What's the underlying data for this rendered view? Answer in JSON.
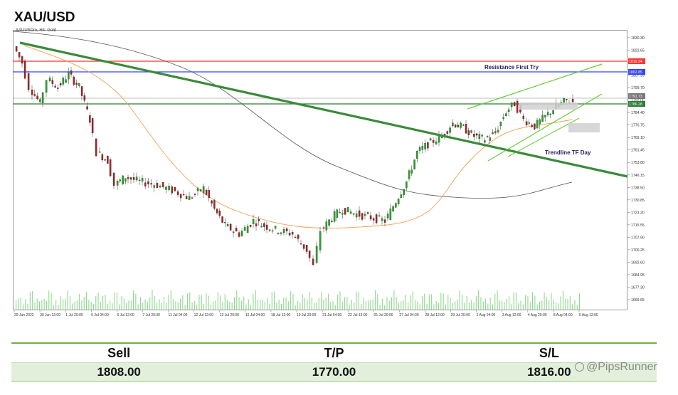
{
  "title": "XAU/USD",
  "chart": {
    "symbol_label": "XAUUSDm, H4: Gold",
    "price_ticks": [
      "1830.30",
      "1822.65",
      "1815.00",
      "1807.35",
      "1799.70",
      "1792.05",
      "1784.40",
      "1776.75",
      "1769.10",
      "1761.45",
      "1753.80",
      "1746.15",
      "1738.50",
      "1730.85",
      "1723.20",
      "1715.55",
      "1707.90",
      "1700.25",
      "1692.60",
      "1684.95",
      "1677.30",
      "1669.65"
    ],
    "price_tags": [
      "1810.34",
      "1802.85",
      "1791.73",
      "1786.28"
    ],
    "time_ticks": [
      "29 Jun 2022",
      "30 Jun 12:00",
      "1 Jul 20:00",
      "5 Jul 04:00",
      "6 Jul 12:00",
      "7 Jul 20:00",
      "11 Jul 04:00",
      "12 Jul 12:00",
      "13 Jul 20:00",
      "15 Jul 04:00",
      "18 Jul 12:00",
      "19 Jul 20:00",
      "21 Jul 04:00",
      "22 Jul 12:00",
      "25 Jul 20:00",
      "27 Jul 04:00",
      "28 Jul 12:00",
      "29 Jul 20:00",
      "2 Aug 04:00",
      "3 Aug 12:00",
      "4 Aug 20:00",
      "8 Aug 04:00",
      "5 Aug 12:00"
    ],
    "annotations": {
      "resistance": "Resistance First Try",
      "trendline": "Trendline TF Day"
    },
    "colors": {
      "bull": "#22aa22",
      "bear": "#aa2222",
      "main_trend": "#3a8a3a",
      "channel": "#66cc33",
      "red_level": "#ff3333",
      "blue_level": "#3344ff",
      "green_level": "#2e7d32",
      "ma_fast": "#f0a050",
      "ma_slow": "#555555"
    }
  },
  "trade": {
    "headers": {
      "sell": "Sell",
      "tp": "T/P",
      "sl": "S/L"
    },
    "values": {
      "sell": "1808.00",
      "tp": "1770.00",
      "sl": "1816.00"
    }
  },
  "watermark": "@PipsRunner"
}
